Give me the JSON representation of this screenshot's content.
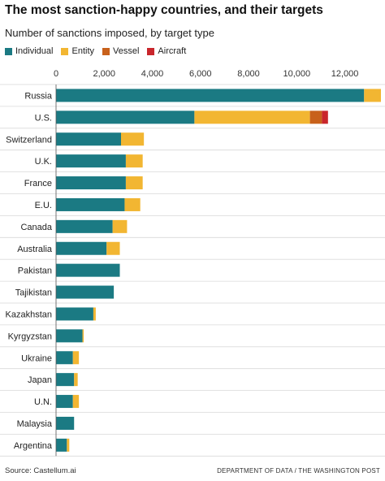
{
  "header": {
    "title": "The most sanction-happy countries, and their targets",
    "subtitle": "Number of sanctions imposed, by target type"
  },
  "legend": [
    {
      "label": "Individual",
      "color": "#1b7a83"
    },
    {
      "label": "Entity",
      "color": "#f2b632"
    },
    {
      "label": "Vessel",
      "color": "#c8611b"
    },
    {
      "label": "Aircraft",
      "color": "#c9262c"
    }
  ],
  "footer": {
    "source": "Source: Castellum.ai",
    "credit": "DEPARTMENT OF DATA / THE WASHINGTON POST"
  },
  "chart_data": {
    "type": "bar",
    "orientation": "horizontal",
    "stacked": true,
    "title": "The most sanction-happy countries, and their targets",
    "subtitle": "Number of sanctions imposed, by target type",
    "xlim": [
      0,
      13500
    ],
    "x_ticks": [
      0,
      2000,
      4000,
      6000,
      8000,
      10000,
      12000
    ],
    "x_tick_labels": [
      "0",
      "2,000",
      "4,000",
      "6,000",
      "8,000",
      "10,000",
      "12,000"
    ],
    "x_axis_position": "top",
    "grid": "horizontal separators between rows",
    "legend_position": "top-left",
    "categories": [
      "Russia",
      "U.S.",
      "Switzerland",
      "U.K.",
      "France",
      "E.U.",
      "Canada",
      "Australia",
      "Pakistan",
      "Tajikistan",
      "Kazakhstan",
      "Kyrgyzstan",
      "Ukraine",
      "Japan",
      "U.N.",
      "Malaysia",
      "Argentina"
    ],
    "series": [
      {
        "name": "Individual",
        "color": "#1b7a83",
        "values": [
          12800,
          5750,
          2700,
          2900,
          2900,
          2850,
          2350,
          2100,
          2650,
          2400,
          1550,
          1100,
          700,
          750,
          700,
          750,
          450
        ]
      },
      {
        "name": "Entity",
        "color": "#f2b632",
        "values": [
          700,
          4800,
          950,
          700,
          700,
          650,
          600,
          550,
          0,
          0,
          100,
          50,
          250,
          150,
          250,
          0,
          100
        ]
      },
      {
        "name": "Vessel",
        "color": "#c8611b",
        "values": [
          0,
          500,
          0,
          0,
          0,
          0,
          0,
          0,
          0,
          0,
          0,
          0,
          0,
          0,
          0,
          0,
          0
        ]
      },
      {
        "name": "Aircraft",
        "color": "#c9262c",
        "values": [
          0,
          250,
          0,
          0,
          0,
          0,
          0,
          0,
          0,
          0,
          0,
          0,
          0,
          0,
          0,
          0,
          0
        ]
      }
    ]
  }
}
